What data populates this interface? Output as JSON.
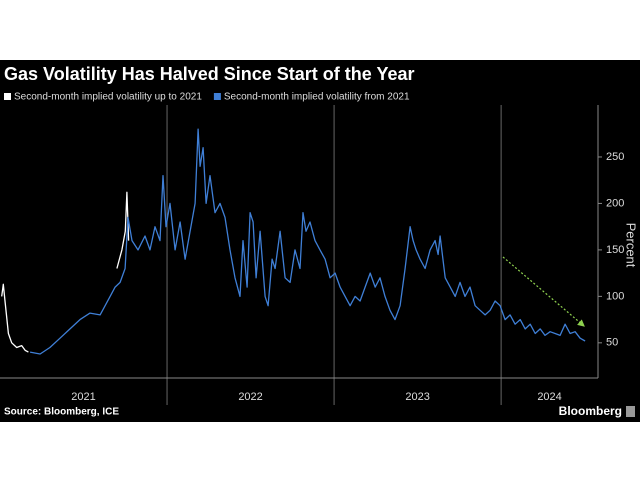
{
  "chart_data": {
    "type": "line",
    "title": "Gas Volatility Has Halved Since Start of the Year",
    "y_label": "Percent",
    "source": "Source: Bloomberg, ICE",
    "brand": "Bloomberg",
    "xlim": [
      2021,
      2024.58
    ],
    "xticks": [
      {
        "value": 2021.5,
        "label": "2021"
      },
      {
        "value": 2022.5,
        "label": "2022"
      },
      {
        "value": 2023.5,
        "label": "2023"
      },
      {
        "value": 2024.29,
        "label": "2024"
      }
    ],
    "year_separators": [
      2022,
      2023,
      2024
    ],
    "ylim": [
      10,
      300
    ],
    "yticks": [
      50,
      100,
      150,
      200,
      250
    ],
    "grid": false,
    "series": [
      {
        "name": "Second-month implied volatility up to 2021",
        "color": "#ffffff",
        "x": [
          2021.01,
          2021.02,
          2021.03,
          2021.05,
          2021.07,
          2021.1,
          2021.13,
          2021.15,
          2021.17,
          null,
          2021.7,
          2021.73,
          2021.75,
          2021.76,
          2021.77
        ],
        "values": [
          100,
          113,
          95,
          60,
          50,
          45,
          47,
          42,
          40,
          null,
          130,
          150,
          170,
          212,
          160
        ]
      },
      {
        "name": "Second-month implied volatility from 2021",
        "color": "#3f7fd6",
        "x": [
          2021.18,
          2021.24,
          2021.299,
          2021.359,
          2021.419,
          2021.479,
          2021.539,
          2021.599,
          2021.629,
          2021.659,
          2021.689,
          2021.719,
          2021.749,
          2021.766,
          2021.79,
          2021.826,
          2021.868,
          2021.898,
          2021.928,
          2021.958,
          2021.976,
          2021.994,
          2022.018,
          2022.048,
          2022.078,
          2022.108,
          2022.138,
          2022.168,
          2022.186,
          2022.198,
          2022.216,
          2022.234,
          2022.257,
          2022.287,
          2022.317,
          2022.347,
          2022.377,
          2022.407,
          2022.437,
          2022.455,
          2022.479,
          2022.497,
          2022.515,
          2022.533,
          2022.557,
          2022.587,
          2022.605,
          2022.629,
          2022.647,
          2022.677,
          2022.707,
          2022.737,
          2022.766,
          2022.796,
          2022.814,
          2022.832,
          2022.856,
          2022.886,
          2022.916,
          2022.946,
          2022.976,
          2023.006,
          2023.036,
          2023.066,
          2023.096,
          2023.126,
          2023.156,
          2023.186,
          2023.216,
          2023.246,
          2023.275,
          2023.305,
          2023.335,
          2023.365,
          2023.395,
          2023.425,
          2023.455,
          2023.473,
          2023.491,
          2023.515,
          2023.545,
          2023.575,
          2023.605,
          2023.623,
          2023.635,
          2023.665,
          2023.695,
          2023.725,
          2023.754,
          2023.784,
          2023.814,
          2023.844,
          2023.874,
          2023.904,
          2023.934,
          2023.964,
          2023.994,
          2024.024,
          2024.054,
          2024.084,
          2024.114,
          2024.144,
          2024.174,
          2024.204,
          2024.234,
          2024.263,
          2024.293,
          2024.323,
          2024.353,
          2024.383,
          2024.413,
          2024.443,
          2024.473,
          2024.503
        ],
        "values": [
          40,
          38,
          45,
          55,
          65,
          75,
          82,
          80,
          90,
          100,
          110,
          115,
          130,
          185,
          160,
          150,
          165,
          150,
          175,
          160,
          230,
          175,
          200,
          150,
          180,
          140,
          170,
          200,
          280,
          240,
          260,
          200,
          230,
          190,
          200,
          185,
          150,
          120,
          100,
          160,
          110,
          190,
          180,
          120,
          170,
          100,
          90,
          140,
          130,
          170,
          120,
          115,
          150,
          130,
          190,
          170,
          180,
          160,
          150,
          140,
          120,
          125,
          110,
          100,
          90,
          100,
          95,
          110,
          125,
          110,
          120,
          100,
          85,
          75,
          90,
          130,
          175,
          160,
          150,
          140,
          130,
          150,
          160,
          145,
          165,
          120,
          110,
          100,
          115,
          100,
          110,
          90,
          85,
          80,
          85,
          95,
          90,
          75,
          80,
          70,
          75,
          65,
          70,
          60,
          65,
          58,
          62,
          60,
          58,
          70,
          60,
          62,
          55,
          52
        ]
      }
    ]
  }
}
